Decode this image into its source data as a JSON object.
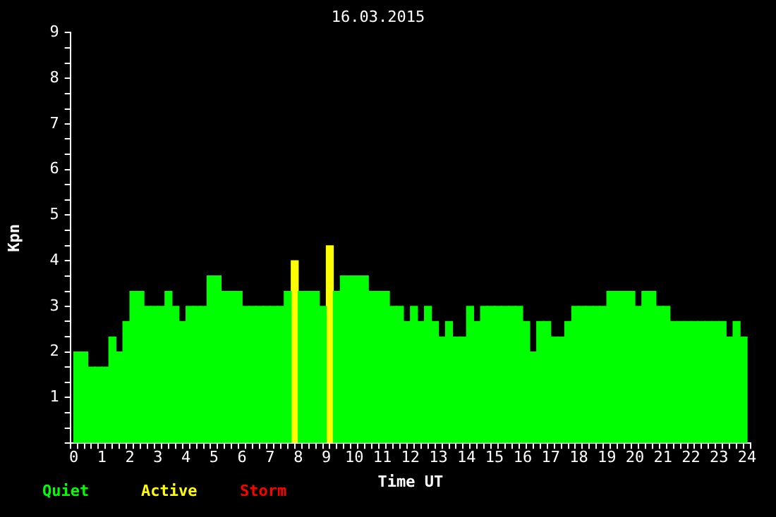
{
  "chart_data": {
    "type": "bar",
    "title": "16.03.2015",
    "xlabel": "Time UT",
    "ylabel": "Kpn",
    "x": [
      0.125,
      0.375,
      0.625,
      0.875,
      1.125,
      1.375,
      1.625,
      1.875,
      2.125,
      2.375,
      2.625,
      2.875,
      3.125,
      3.375,
      3.625,
      3.875,
      4.125,
      4.375,
      4.625,
      4.875,
      5.125,
      5.375,
      5.625,
      5.875,
      6.125,
      6.375,
      6.625,
      6.875,
      7.125,
      7.375,
      7.625,
      7.875,
      8.125,
      8.375,
      8.625,
      8.875,
      9.125,
      9.375,
      9.625,
      9.875,
      10.125,
      10.375,
      10.625,
      10.875,
      11.125,
      11.375,
      11.625,
      11.875,
      12.125,
      12.375,
      12.625,
      12.875,
      13.125,
      13.375,
      13.625,
      13.875,
      14.125,
      14.375,
      14.625,
      14.875,
      15.125,
      15.375,
      15.625,
      15.875,
      16.125,
      16.375,
      16.625,
      16.875,
      17.125,
      17.375,
      17.625,
      17.875,
      18.125,
      18.375,
      18.625,
      18.875,
      19.125,
      19.375,
      19.625,
      19.875,
      20.125,
      20.375,
      20.625,
      20.875,
      21.125,
      21.375,
      21.625,
      21.875,
      22.125,
      22.375,
      22.625,
      22.875,
      23.125,
      23.375,
      23.625,
      23.875
    ],
    "series": [
      {
        "name": "Quiet",
        "color": "#00ff00",
        "values": [
          2,
          2,
          1.67,
          1.67,
          1.67,
          2.33,
          2,
          2.67,
          3.33,
          3.33,
          3,
          3,
          3,
          3.33,
          3,
          2.67,
          3,
          3,
          3,
          3.67,
          3.67,
          3.33,
          3.33,
          3.33,
          3,
          3,
          3,
          3,
          3,
          3,
          3.33,
          null,
          3.33,
          3.33,
          3.33,
          3,
          null,
          3.33,
          3.67,
          3.67,
          3.67,
          3.67,
          3.33,
          3.33,
          3.33,
          3,
          3,
          2.67,
          3,
          2.67,
          3,
          2.67,
          2.33,
          2.67,
          2.33,
          2.33,
          3,
          2.67,
          3,
          3,
          3,
          3,
          3,
          3,
          2.67,
          2,
          2.67,
          2.67,
          2.33,
          2.33,
          2.67,
          3,
          3,
          3,
          3,
          3,
          3.33,
          3.33,
          3.33,
          3.33,
          3,
          3.33,
          3.33,
          3,
          3,
          2.67,
          2.67,
          2.67,
          2.67,
          2.67,
          2.67,
          2.67,
          2.67,
          2.33,
          2.67,
          2.33
        ]
      },
      {
        "name": "Active",
        "color": "#ffff00",
        "values": [
          null,
          null,
          null,
          null,
          null,
          null,
          null,
          null,
          null,
          null,
          null,
          null,
          null,
          null,
          null,
          null,
          null,
          null,
          null,
          null,
          null,
          null,
          null,
          null,
          null,
          null,
          null,
          null,
          null,
          null,
          null,
          4,
          null,
          null,
          null,
          null,
          4.33,
          null,
          null,
          null,
          null,
          null,
          null,
          null,
          null,
          null,
          null,
          null,
          null,
          null,
          null,
          null,
          null,
          null,
          null,
          null,
          null,
          null,
          null,
          null,
          null,
          null,
          null,
          null,
          null,
          null,
          null,
          null,
          null,
          null,
          null,
          null,
          null,
          null,
          null,
          null,
          null,
          null,
          null,
          null,
          null,
          null,
          null,
          null,
          null,
          null,
          null,
          null,
          null,
          null,
          null,
          null,
          null,
          null,
          null,
          null
        ]
      },
      {
        "name": "Storm",
        "color": "#ff0000",
        "values": [
          null,
          null,
          null,
          null,
          null,
          null,
          null,
          null,
          null,
          null,
          null,
          null,
          null,
          null,
          null,
          null,
          null,
          null,
          null,
          null,
          null,
          null,
          null,
          null,
          null,
          null,
          null,
          null,
          null,
          null,
          null,
          null,
          null,
          null,
          null,
          null,
          null,
          null,
          null,
          null,
          null,
          null,
          null,
          null,
          null,
          null,
          null,
          null,
          null,
          null,
          null,
          null,
          null,
          null,
          null,
          null,
          null,
          null,
          null,
          null,
          null,
          null,
          null,
          null,
          null,
          null,
          null,
          null,
          null,
          null,
          null,
          null,
          null,
          null,
          null,
          null,
          null,
          null,
          null,
          null,
          null,
          null,
          null,
          null,
          null,
          null,
          null,
          null,
          null,
          null,
          null,
          null,
          null,
          null,
          null,
          null
        ]
      }
    ],
    "xlim": [
      0,
      24
    ],
    "xticks": [
      0,
      {
        "value": 0.25,
        "label": null
      },
      {
        "value": 0.5,
        "label": null
      },
      {
        "value": 0.75,
        "label": null
      },
      1,
      {
        "value": 1.25,
        "label": null
      },
      {
        "value": 1.5,
        "label": null
      },
      {
        "value": 1.75,
        "label": null
      },
      2,
      {
        "value": 2.25,
        "label": null
      },
      {
        "value": 2.5,
        "label": null
      },
      {
        "value": 2.75,
        "label": null
      },
      3,
      {
        "value": 3.25,
        "label": null
      },
      {
        "value": 3.5,
        "label": null
      },
      {
        "value": 3.75,
        "label": null
      },
      4,
      {
        "value": 4.25,
        "label": null
      },
      {
        "value": 4.5,
        "label": null
      },
      {
        "value": 4.75,
        "label": null
      },
      5,
      {
        "value": 5.25,
        "label": null
      },
      {
        "value": 5.5,
        "label": null
      },
      {
        "value": 5.75,
        "label": null
      },
      6,
      {
        "value": 6.25,
        "label": null
      },
      {
        "value": 6.5,
        "label": null
      },
      {
        "value": 6.75,
        "label": null
      },
      7,
      {
        "value": 7.25,
        "label": null
      },
      {
        "value": 7.5,
        "label": null
      },
      {
        "value": 7.75,
        "label": null
      },
      8,
      {
        "value": 8.25,
        "label": null
      },
      {
        "value": 8.5,
        "label": null
      },
      {
        "value": 8.75,
        "label": null
      },
      9,
      {
        "value": 9.25,
        "label": null
      },
      {
        "value": 9.5,
        "label": null
      },
      {
        "value": 9.75,
        "label": null
      },
      10,
      {
        "value": 10.25,
        "label": null
      },
      {
        "value": 10.5,
        "label": null
      },
      {
        "value": 10.75,
        "label": null
      },
      11,
      {
        "value": 11.25,
        "label": null
      },
      {
        "value": 11.5,
        "label": null
      },
      {
        "value": 11.75,
        "label": null
      },
      12,
      {
        "value": 12.25,
        "label": null
      },
      {
        "value": 12.5,
        "label": null
      },
      {
        "value": 12.75,
        "label": null
      },
      13,
      {
        "value": 13.25,
        "label": null
      },
      {
        "value": 13.5,
        "label": null
      },
      {
        "value": 13.75,
        "label": null
      },
      14,
      {
        "value": 14.25,
        "label": null
      },
      {
        "value": 14.5,
        "label": null
      },
      {
        "value": 14.75,
        "label": null
      },
      15,
      {
        "value": 15.25,
        "label": null
      },
      {
        "value": 15.5,
        "label": null
      },
      {
        "value": 15.75,
        "label": null
      },
      16,
      {
        "value": 16.25,
        "label": null
      },
      {
        "value": 16.5,
        "label": null
      },
      {
        "value": 16.75,
        "label": null
      },
      17,
      {
        "value": 17.25,
        "label": null
      },
      {
        "value": 17.5,
        "label": null
      },
      {
        "value": 17.75,
        "label": null
      },
      18,
      {
        "value": 18.25,
        "label": null
      },
      {
        "value": 18.5,
        "label": null
      },
      {
        "value": 18.75,
        "label": null
      },
      19,
      {
        "value": 19.25,
        "label": null
      },
      {
        "value": 19.5,
        "label": null
      },
      {
        "value": 19.75,
        "label": null
      },
      20,
      {
        "value": 20.25,
        "label": null
      },
      {
        "value": 20.5,
        "label": null
      },
      {
        "value": 20.75,
        "label": null
      },
      21,
      {
        "value": 21.25,
        "label": null
      },
      {
        "value": 21.5,
        "label": null
      },
      {
        "value": 21.75,
        "label": null
      },
      22,
      {
        "value": 22.25,
        "label": null
      },
      {
        "value": 22.5,
        "label": null
      },
      {
        "value": 22.75,
        "label": null
      },
      23,
      {
        "value": 23.25,
        "label": null
      },
      {
        "value": 23.5,
        "label": null
      },
      {
        "value": 23.75,
        "label": null
      },
      24
    ],
    "ylim": [
      0,
      9
    ],
    "yticks": [
      {
        "value": 0,
        "label": null
      },
      {
        "value": 0.33,
        "label": null
      },
      {
        "value": 0.67,
        "label": null
      },
      1,
      {
        "value": 1.33,
        "label": null
      },
      {
        "value": 1.67,
        "label": null
      },
      2,
      {
        "value": 2.33,
        "label": null
      },
      {
        "value": 2.67,
        "label": null
      },
      3,
      {
        "value": 3.33,
        "label": null
      },
      {
        "value": 3.67,
        "label": null
      },
      4,
      {
        "value": 4.33,
        "label": null
      },
      {
        "value": 4.67,
        "label": null
      },
      5,
      {
        "value": 5.33,
        "label": null
      },
      {
        "value": 5.67,
        "label": null
      },
      6,
      {
        "value": 6.33,
        "label": null
      },
      {
        "value": 6.67,
        "label": null
      },
      7,
      {
        "value": 7.33,
        "label": null
      },
      {
        "value": 7.67,
        "label": null
      },
      8,
      {
        "value": 8.33,
        "label": null
      },
      {
        "value": 8.67,
        "label": null
      },
      9
    ],
    "grid": false,
    "legend": "bottom left"
  }
}
